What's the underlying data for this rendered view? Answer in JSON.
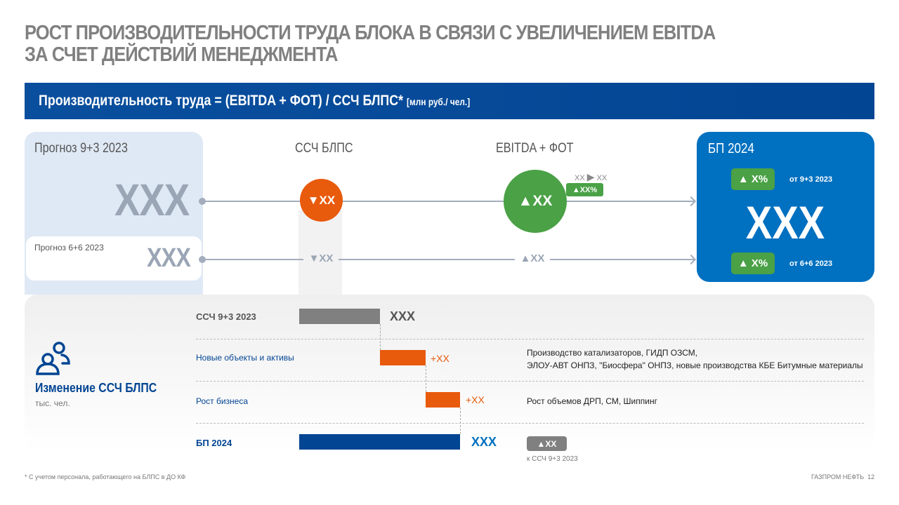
{
  "title": {
    "line1": "РОСТ ПРОИЗВОДИТЕЛЬНОСТИ ТРУДА БЛОКА В СВЯЗИ С УВЕЛИЧЕНИЕМ EBITDA",
    "line2": "ЗА СЧЕТ ДЕЙСТВИЙ МЕНЕДЖМЕНТА"
  },
  "banner": {
    "formula": "Производительность труда = (EBITDA + ФОТ) / ССЧ БЛПС*",
    "unit": "[млн руб./ чел.]"
  },
  "forecast": {
    "main_label": "Прогноз 9+3 2023",
    "main_value": "XXX",
    "sub_label": "Прогноз 6+6 2023",
    "sub_value": "XXX"
  },
  "ssch": {
    "header": "ССЧ БЛПС",
    "circle_value": "▼XX",
    "lower_value": "▼XX"
  },
  "ebitda": {
    "header": "EBITDA + ФОТ",
    "circle_value": "▲XX",
    "lower_value": "▲XX",
    "change_from": "XX",
    "change_to": "XX",
    "change_pct": "▲XX%"
  },
  "bp": {
    "header": "БП 2024",
    "value": "XXX",
    "badge_top": "▲ X%",
    "badge_top_note": "от 9+3 2023",
    "badge_bottom": "▲ X%",
    "badge_bottom_note": "от 6+6 2023"
  },
  "headcount": {
    "title": "Изменение ССЧ БЛПС",
    "unit": "тыс. чел.",
    "rows": [
      {
        "label": "ССЧ 9+3 2023",
        "value": "XXX",
        "description": ""
      },
      {
        "label": "Новые объекты и активы",
        "value": "+XX",
        "description": "Производство катализаторов, ГИДП ОЗСМ,",
        "description2": "ЭЛОУ-АВТ ОНПЗ, \"Биосфера\" ОНПЗ, новые производства КБЕ Битумные материалы"
      },
      {
        "label": "Рост бизнеса",
        "value": "+XX",
        "description": "Рост объемов ДРП, СМ, Шиппинг"
      },
      {
        "label": "БП 2024",
        "value": "XXX",
        "badge": "▲XX",
        "badge_note": "к ССЧ 9+3 2023"
      }
    ]
  },
  "footer": {
    "note": "* С учетом персонала, работающего на БЛПС в ДО КФ",
    "brand": "ГАЗПРОМ НЕФТЬ",
    "page": "12"
  },
  "colors": {
    "navy": "#024593",
    "blue": "#0070c0",
    "orange": "#e85a0c",
    "green": "#4aa146",
    "gray": "#808080"
  }
}
